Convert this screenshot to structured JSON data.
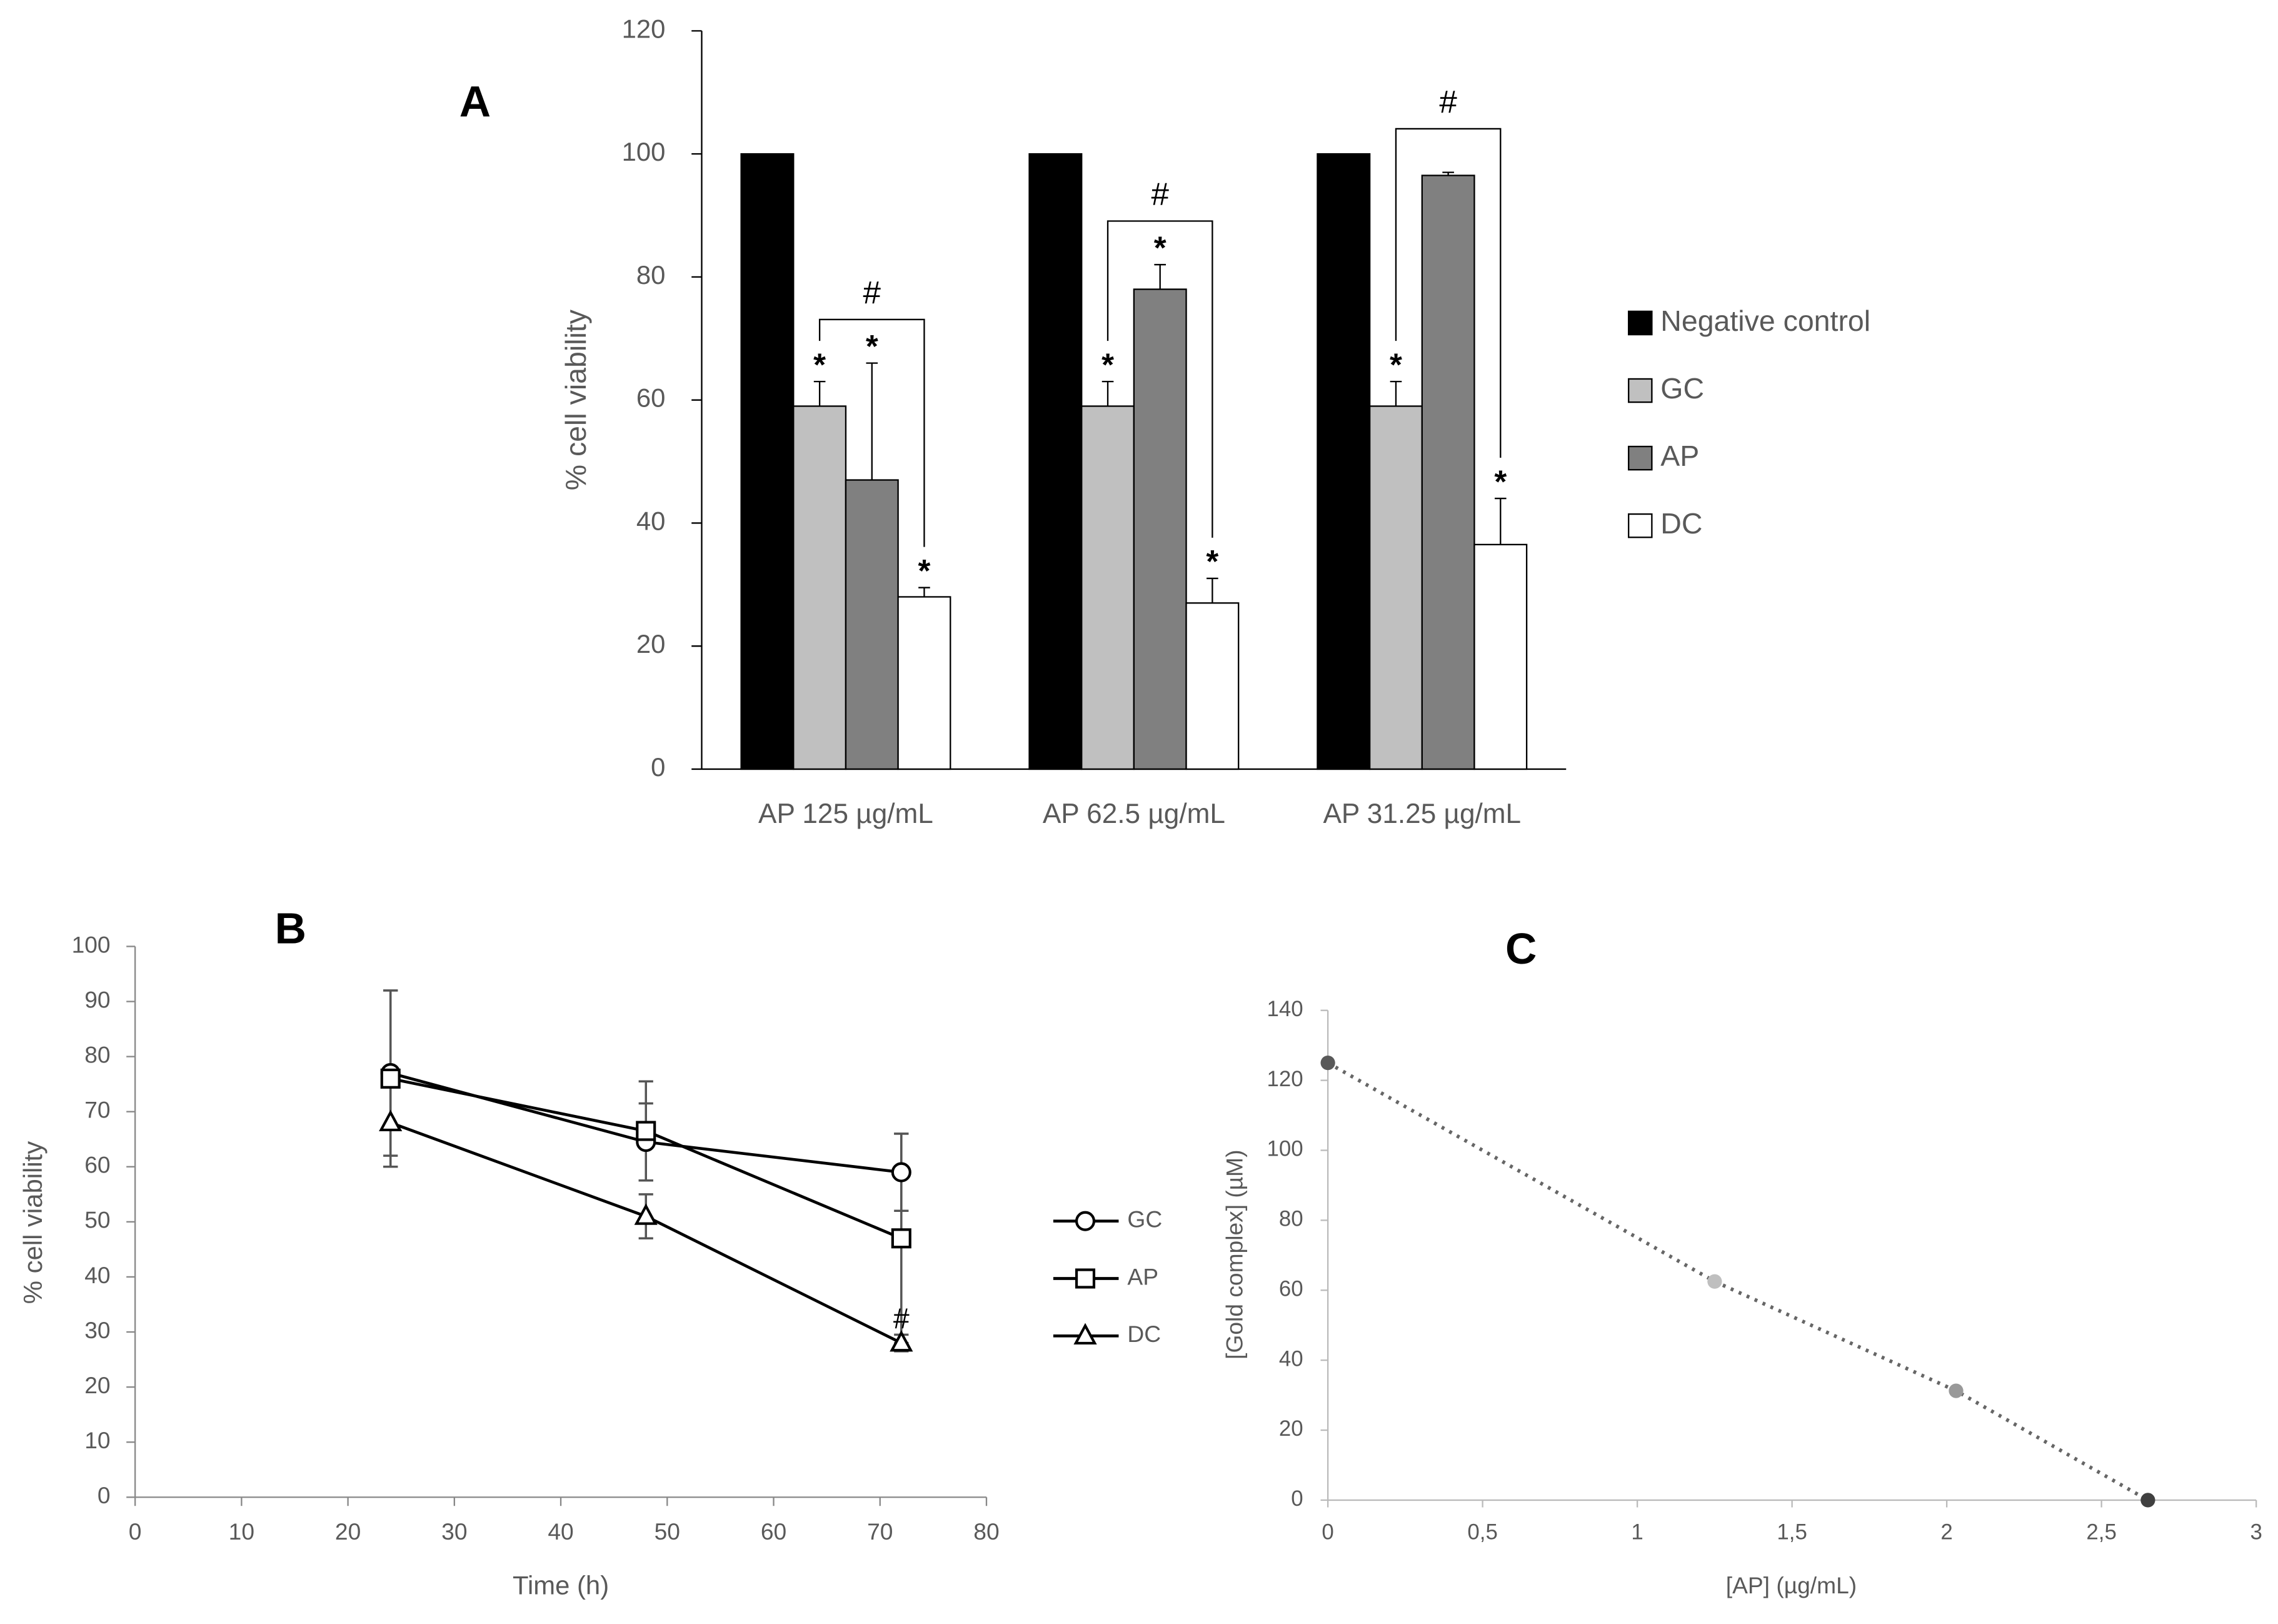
{
  "chart_data": [
    {
      "type": "bar",
      "title": "A",
      "y_label": "% cell viability",
      "categories": [
        "AP 125 µg/mL",
        "AP 62.5 µg/mL",
        "AP 31.25 µg/mL"
      ],
      "series": [
        {
          "name": "Negative control",
          "color": "#000000",
          "values": [
            100,
            100,
            100
          ]
        },
        {
          "name": "GC",
          "color": "#c0c0c0",
          "values": [
            59,
            59,
            59
          ],
          "errors": [
            4,
            4,
            4
          ],
          "labels": [
            "*",
            "*",
            "*"
          ]
        },
        {
          "name": "AP",
          "color": "#808080",
          "values": [
            47,
            78,
            96.5
          ],
          "errors": [
            19,
            4,
            0.5
          ],
          "labels": [
            "*",
            "*",
            null
          ]
        },
        {
          "name": "DC",
          "color": "#ffffff",
          "values": [
            28,
            27,
            36.5
          ],
          "errors": [
            1.5,
            4,
            7.5
          ],
          "labels": [
            "*",
            "*",
            "*"
          ]
        }
      ],
      "brackets": [
        {
          "category": 0,
          "from": 1,
          "to": 3,
          "text": "#"
        },
        {
          "category": 1,
          "from": 1,
          "to": 3,
          "text": "#"
        },
        {
          "category": 2,
          "from": 1,
          "to": 3,
          "text": "#"
        }
      ],
      "ylim": [
        0,
        120
      ],
      "yticks": [
        0,
        20,
        40,
        60,
        80,
        100,
        120
      ],
      "legend": "right"
    },
    {
      "type": "line",
      "title": "B",
      "x_label": "Time (h)",
      "y_label": "% cell viability",
      "x": [
        24,
        48,
        72
      ],
      "series": [
        {
          "name": "GC",
          "color": "#000000",
          "marker": "circle",
          "values": [
            77,
            64.5,
            59
          ],
          "errors": [
            15,
            7,
            7
          ]
        },
        {
          "name": "AP",
          "color": "#000000",
          "marker": "square",
          "values": [
            76,
            66.5,
            47
          ],
          "errors": [
            16,
            9,
            19
          ]
        },
        {
          "name": "DC",
          "color": "#000000",
          "marker": "triangle",
          "values": [
            68,
            51,
            28
          ],
          "errors": [
            8,
            4,
            1.5
          ]
        }
      ],
      "annotations": [
        {
          "text": "#",
          "x": 72,
          "y": 32
        }
      ],
      "xlim": [
        0,
        80
      ],
      "xticks": [
        0,
        10,
        20,
        30,
        40,
        50,
        60,
        70,
        80
      ],
      "ylim": [
        0,
        100
      ],
      "yticks": [
        0,
        10,
        20,
        30,
        40,
        50,
        60,
        70,
        80,
        90,
        100
      ],
      "legend": "right"
    },
    {
      "type": "scatter",
      "title": "C",
      "x_label": "[AP] (µg/mL)",
      "y_label": "[Gold complex] (µM)",
      "x": [
        0,
        1.25,
        2.03,
        2.65
      ],
      "values": [
        125,
        62.5,
        31.25,
        0
      ],
      "colors": [
        "#595959",
        "#bfbfbf",
        "#999999",
        "#404040"
      ],
      "trendline": true,
      "xlim": [
        0,
        3
      ],
      "xticks": [
        0,
        {
          "value": 0.5,
          "label": "0,5"
        },
        1,
        {
          "value": 1.5,
          "label": "1,5"
        },
        2,
        {
          "value": 2.5,
          "label": "2,5"
        },
        3
      ],
      "ylim": [
        0,
        140
      ],
      "yticks": [
        0,
        20,
        40,
        60,
        80,
        100,
        120,
        140
      ]
    }
  ]
}
